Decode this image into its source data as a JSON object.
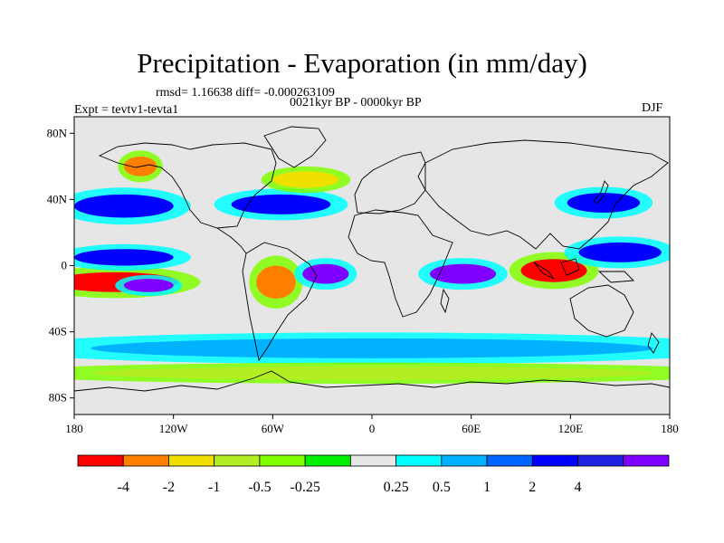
{
  "figure": {
    "title": "Precipitation - Evaporation (in mm/day)",
    "stats": "rmsd= 1.16638 diff= -0.000263109",
    "period": "0021kyr BP - 0000kyr BP",
    "experiment": "Expt = tevtv1-tevta1",
    "season": "DJF"
  },
  "chart_data": {
    "type": "heatmap",
    "title": "Precipitation - Evaporation (in mm/day)",
    "projection": "cylindrical equidistant",
    "lon_range": [
      -180,
      180
    ],
    "lat_range": [
      -90,
      90
    ],
    "x_ticks": [
      {
        "value": -180,
        "label": "180"
      },
      {
        "value": -120,
        "label": "120W"
      },
      {
        "value": -60,
        "label": "60W"
      },
      {
        "value": 0,
        "label": "0"
      },
      {
        "value": 60,
        "label": "60E"
      },
      {
        "value": 120,
        "label": "120E"
      },
      {
        "value": 180,
        "label": "180"
      }
    ],
    "y_ticks": [
      {
        "value": 80,
        "label": "80N"
      },
      {
        "value": 40,
        "label": "40N"
      },
      {
        "value": 0,
        "label": "0"
      },
      {
        "value": -40,
        "label": "40S"
      },
      {
        "value": -80,
        "label": "80S"
      }
    ],
    "colorbar": {
      "colors": [
        "#ff0000",
        "#ff7f00",
        "#f0e000",
        "#b2ee22",
        "#80ff00",
        "#00ee00",
        "#e6e6e6",
        "#00ffff",
        "#00b2ff",
        "#0064ff",
        "#0000ff",
        "#2020e0",
        "#8000ff"
      ],
      "levels": [
        "-4",
        "-2",
        "-1",
        "-0.5",
        "-0.25",
        "0.25",
        "0.5",
        "1",
        "2",
        "4"
      ],
      "level_label_positions": [
        1,
        2,
        3,
        4,
        5,
        7,
        8,
        9,
        10,
        11
      ]
    },
    "anomalies": [
      {
        "name": "south pacific dry",
        "lon": -155,
        "lat": -10,
        "rx": 38,
        "ry": 6,
        "value": -5
      },
      {
        "name": "south pacific wet",
        "lon": -135,
        "lat": -12,
        "rx": 15,
        "ry": 4,
        "value": 5
      },
      {
        "name": "north pacific itcz wet",
        "lon": -150,
        "lat": 5,
        "rx": 30,
        "ry": 5,
        "value": 3
      },
      {
        "name": "north pacific storm wet",
        "lon": -150,
        "lat": 36,
        "rx": 30,
        "ry": 7,
        "value": 2.5
      },
      {
        "name": "north atlantic storm wet",
        "lon": -55,
        "lat": 37,
        "rx": 30,
        "ry": 6,
        "value": 3
      },
      {
        "name": "north atlantic dry",
        "lon": -40,
        "lat": 52,
        "rx": 20,
        "ry": 5,
        "value": -1
      },
      {
        "name": "amazon dry",
        "lon": -58,
        "lat": -10,
        "rx": 12,
        "ry": 10,
        "value": -2
      },
      {
        "name": "south atlantic wet",
        "lon": -28,
        "lat": -5,
        "rx": 14,
        "ry": 6,
        "value": 5
      },
      {
        "name": "indian ocean wet",
        "lon": 55,
        "lat": -5,
        "rx": 20,
        "ry": 6,
        "value": 5
      },
      {
        "name": "maritime continent dry",
        "lon": 110,
        "lat": -3,
        "rx": 20,
        "ry": 7,
        "value": -4
      },
      {
        "name": "west pacific wet",
        "lon": 150,
        "lat": 8,
        "rx": 25,
        "ry": 6,
        "value": 3
      },
      {
        "name": "east asia wet",
        "lon": 140,
        "lat": 38,
        "rx": 22,
        "ry": 6,
        "value": 3
      },
      {
        "name": "alaska dry",
        "lon": -140,
        "lat": 60,
        "rx": 10,
        "ry": 6,
        "value": -2
      },
      {
        "name": "southern ocean band",
        "lon": 0,
        "lat": -50,
        "rx": 170,
        "ry": 6,
        "value": 0.6
      },
      {
        "name": "antarctic coast dry",
        "lon": 0,
        "lat": -65,
        "rx": 170,
        "ry": 4,
        "value": -0.6
      }
    ]
  }
}
